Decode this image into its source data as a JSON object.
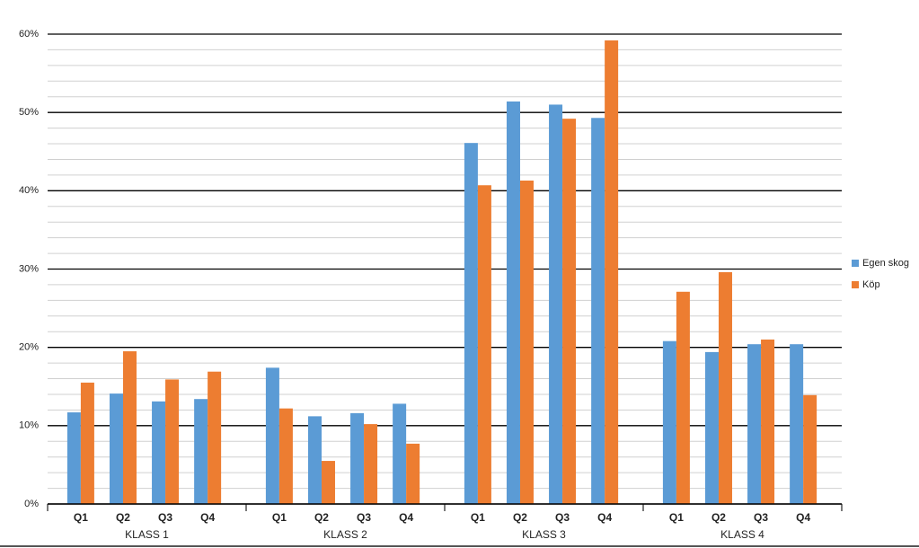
{
  "chart_data": {
    "type": "bar",
    "categories": [
      "Q1",
      "Q2",
      "Q3",
      "Q4",
      "Q1",
      "Q2",
      "Q3",
      "Q4",
      "Q1",
      "Q2",
      "Q3",
      "Q4",
      "Q1",
      "Q2",
      "Q3",
      "Q4"
    ],
    "groups": [
      "KLASS 1",
      "KLASS 2",
      "KLASS 3",
      "KLASS 4"
    ],
    "series": [
      {
        "name": "Egen skog",
        "color": "#5b9bd5",
        "values": [
          11.7,
          14.1,
          13.1,
          13.4,
          17.4,
          11.2,
          11.6,
          12.8,
          46.1,
          51.4,
          51.0,
          49.3,
          20.8,
          19.4,
          20.4,
          20.4
        ]
      },
      {
        "name": "Köp",
        "color": "#ed7d31",
        "values": [
          15.5,
          19.5,
          15.9,
          16.9,
          12.2,
          5.5,
          10.2,
          7.7,
          40.7,
          41.3,
          49.2,
          59.2,
          27.1,
          29.6,
          21.0,
          13.9
        ]
      }
    ],
    "ylim": [
      0,
      60
    ],
    "yticks": [
      {
        "value": 0,
        "label": "0%"
      },
      {
        "value": 10,
        "label": "10%"
      },
      {
        "value": 20,
        "label": "20%"
      },
      {
        "value": 30,
        "label": "30%"
      },
      {
        "value": 40,
        "label": "40%"
      },
      {
        "value": 50,
        "label": "50%"
      },
      {
        "value": 60,
        "label": "60%"
      }
    ],
    "yminorticks": [
      2,
      4,
      6,
      8,
      12,
      14,
      16,
      18,
      22,
      24,
      26,
      28,
      32,
      34,
      36,
      38,
      42,
      44,
      46,
      48,
      52,
      54,
      56,
      58
    ],
    "grid": true,
    "legend": "right"
  }
}
